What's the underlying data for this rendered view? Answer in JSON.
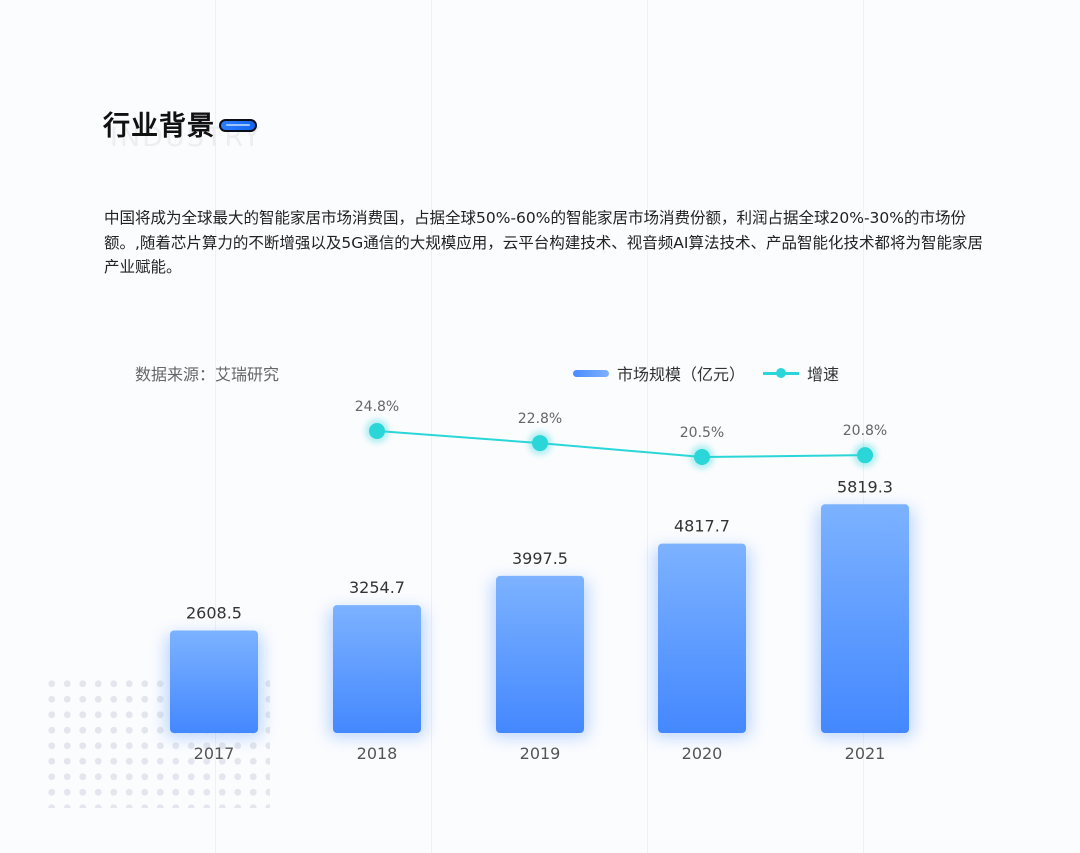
{
  "header": {
    "title": "行业背景",
    "watermark": "INDUSTRY"
  },
  "body_text": "中国将成为全球最大的智能家居市场消费国，占据全球50%-60%的智能家居市场消费份额，利润占据全球20%-30%的市场份额。,随着芯片算力的不断增强以及5G通信的大规模应用，云平台构建技术、视音频AI算法技术、产品智能化技术都将为智能家居产业赋能。",
  "source": "数据来源：艾瑞研究",
  "colors": {
    "bar_top": "#7cb2ff",
    "bar_bottom": "#4488ff",
    "line": "#2ad6d8"
  },
  "chart_data": {
    "type": "bar",
    "categories": [
      "2017",
      "2018",
      "2019",
      "2020",
      "2021"
    ],
    "series": [
      {
        "name": "市场规模（亿元）",
        "type": "bar",
        "values": [
          2608.5,
          3254.7,
          3997.5,
          4817.7,
          5819.3
        ],
        "labels": [
          "2608.5",
          "3254.7",
          "3997.5",
          "4817.7",
          "5819.3"
        ]
      },
      {
        "name": "增速",
        "type": "line",
        "values": [
          null,
          24.8,
          22.8,
          20.5,
          20.8
        ],
        "labels": [
          "",
          "24.8%",
          "22.8%",
          "20.5%",
          "20.8%"
        ]
      }
    ],
    "legend_position": "top-right",
    "grid": false
  }
}
